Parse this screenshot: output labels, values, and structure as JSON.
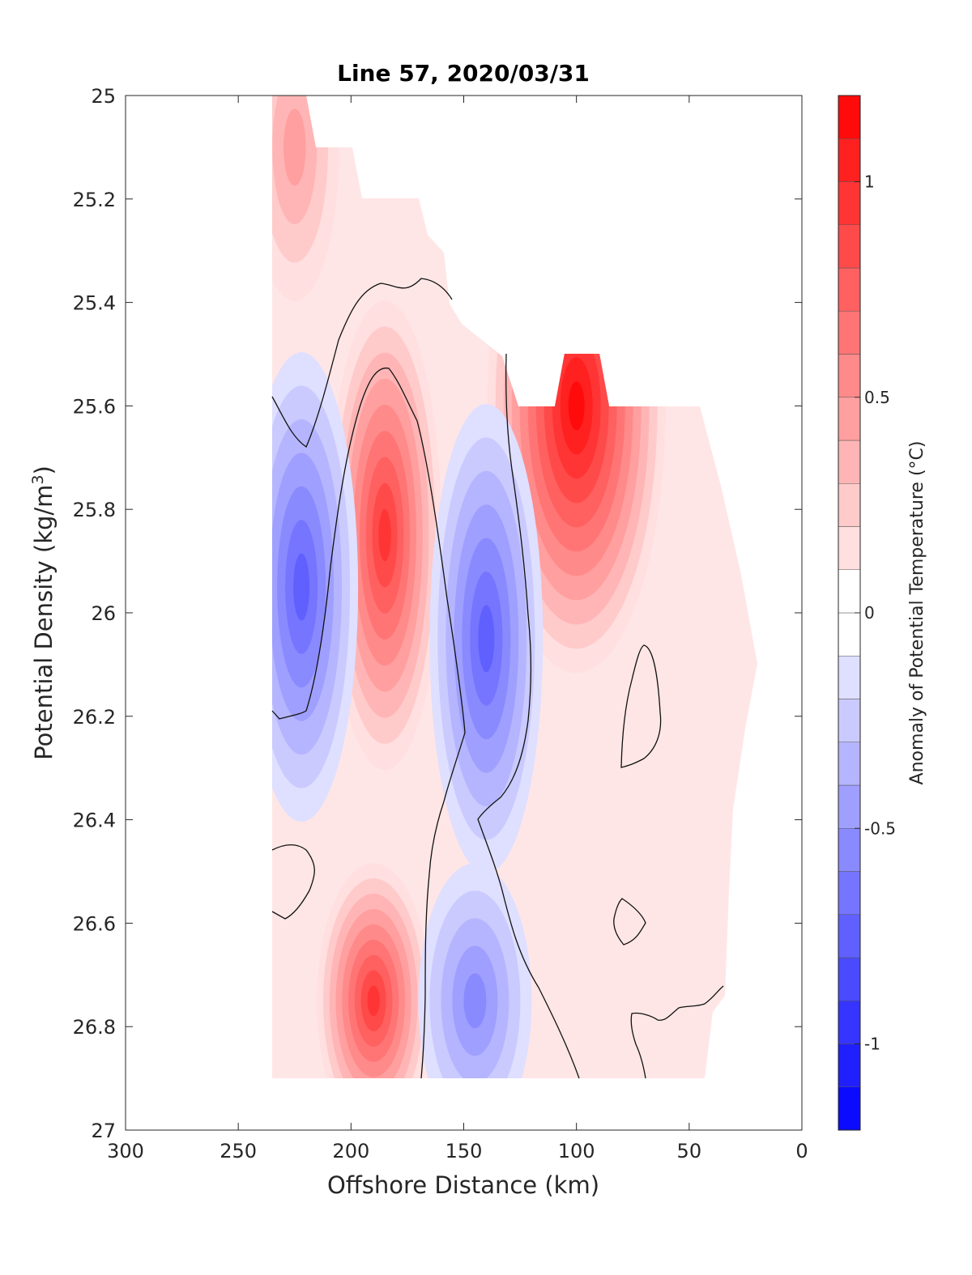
{
  "chart_data": {
    "type": "heatmap",
    "title": "Line 57, 2020/03/31",
    "xlabel": "Offshore Distance (km)",
    "ylabel_main": "Potential Density (kg/m",
    "ylabel_sup": "3",
    "ylabel_close": ")",
    "xlim": [
      300,
      0
    ],
    "ylim": [
      25,
      27
    ],
    "x_reversed": true,
    "y_reversed": true,
    "x_ticks": [
      300,
      250,
      200,
      150,
      100,
      50,
      0
    ],
    "x_tick_labels": [
      "300",
      "250",
      "200",
      "150",
      "100",
      "50",
      "0"
    ],
    "y_ticks": [
      25,
      25.2,
      25.4,
      25.6,
      25.8,
      26,
      26.2,
      26.4,
      26.6,
      26.8,
      27
    ],
    "y_tick_labels": [
      "25",
      "25.2",
      "25.4",
      "25.6",
      "25.8",
      "26",
      "26.2",
      "26.4",
      "26.6",
      "26.8",
      "27"
    ],
    "colorbar": {
      "label": "Anomaly of Potential Temperature (°C)",
      "range": [
        -1.2,
        1.2
      ],
      "step": 0.1,
      "ticks": [
        1,
        0.5,
        0,
        -0.5,
        -1
      ],
      "tick_labels": [
        "1",
        "0.5",
        "0",
        "-0.5",
        "-1"
      ],
      "colormap": "blue-white-red",
      "color_negative": "#0000ff",
      "color_positive": "#ff0000",
      "color_zero": "#ffffff"
    },
    "contour_levels": [
      0
    ],
    "grid": false,
    "features": [
      {
        "name": "nearshore-warm-core",
        "x": 100,
        "y": 25.6,
        "value": 1.1
      },
      {
        "name": "offshore-warm-core",
        "x": 185,
        "y": 25.85,
        "value": 0.9
      },
      {
        "name": "cold-core-150km",
        "x": 140,
        "y": 26.05,
        "value": -0.7
      },
      {
        "name": "cold-core-220km",
        "x": 222,
        "y": 25.95,
        "value": -0.7
      },
      {
        "name": "deep-warm-core",
        "x": 190,
        "y": 26.75,
        "value": 0.85
      },
      {
        "name": "deep-cold-core",
        "x": 145,
        "y": 26.75,
        "value": -0.5
      },
      {
        "name": "surface-warm-230km",
        "x": 225,
        "y": 25.1,
        "value": 0.4
      }
    ]
  }
}
